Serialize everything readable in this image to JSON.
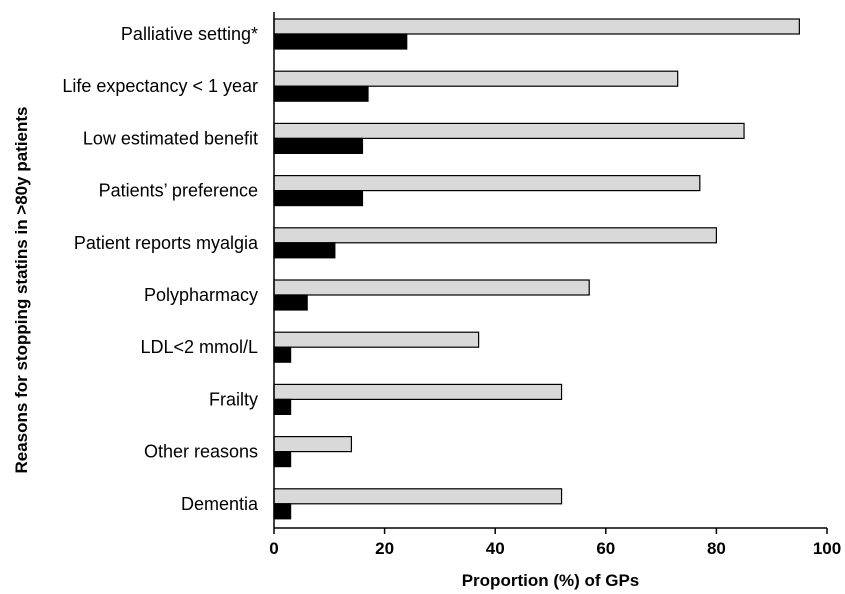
{
  "chart_data": {
    "type": "bar",
    "orientation": "horizontal",
    "title": "",
    "xlabel": "Proportion (%) of GPs",
    "ylabel": "Reasons for stopping statins in >80y patients",
    "xlim": [
      0,
      100
    ],
    "xticks": [
      "0",
      "20",
      "40",
      "60",
      "80",
      "100"
    ],
    "grid": false,
    "legend": "none",
    "categories": [
      "Palliative setting*",
      "Life expectancy < 1 year",
      "Low estimated benefit",
      "Patients’ preference",
      "Patient reports myalgia",
      "Polypharmacy",
      "LDL<2 mmol/L",
      "Frailty",
      "Other reasons",
      "Dementia"
    ],
    "series": [
      {
        "color": "#d9d9d9",
        "values": [
          95,
          73,
          85,
          77,
          80,
          57,
          37,
          52,
          14,
          52
        ]
      },
      {
        "color": "#000000",
        "values": [
          24,
          17,
          16,
          16,
          11,
          6,
          3,
          3,
          3,
          3
        ]
      }
    ]
  }
}
